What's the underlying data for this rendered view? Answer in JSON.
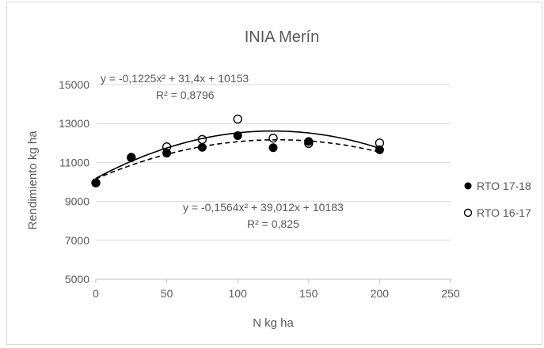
{
  "chart_data": {
    "type": "scatter",
    "title": "INIA Merín",
    "xlabel": "N kg ha",
    "ylabel": "Rendimiento kg ha",
    "xlim": [
      0,
      250
    ],
    "ylim": [
      5000,
      15000
    ],
    "x_ticks": [
      "0",
      "50",
      "100",
      "150",
      "200",
      "250"
    ],
    "y_ticks": [
      "5000",
      "7000",
      "9000",
      "11000",
      "13000",
      "15000"
    ],
    "grid": true,
    "legend_position": "right",
    "series": [
      {
        "name": "RTO 17-18",
        "marker": "filled-circle",
        "trendline": "solid",
        "color": "#000000",
        "points": [
          [
            0,
            9950
          ],
          [
            25,
            11270
          ],
          [
            50,
            11480
          ],
          [
            75,
            11780
          ],
          [
            100,
            12380
          ],
          [
            125,
            11760
          ],
          [
            150,
            12080
          ],
          [
            200,
            11650
          ]
        ],
        "equation": "y = -0,1564x² + 39,012x + 10183",
        "r2": "R² = 0,825",
        "coef": [
          -0.1564,
          39.012,
          10183
        ]
      },
      {
        "name": "RTO 16-17",
        "marker": "open-circle",
        "trendline": "dashed",
        "color": "#000000",
        "points": [
          [
            0,
            9950
          ],
          [
            25,
            11250
          ],
          [
            50,
            11800
          ],
          [
            75,
            12180
          ],
          [
            100,
            13230
          ],
          [
            125,
            12250
          ],
          [
            150,
            11980
          ],
          [
            200,
            12000
          ]
        ],
        "equation": "y = -0,1225x² + 31,4x + 10153",
        "r2": "R² = 0,8796",
        "coef": [
          -0.1225,
          31.4,
          10153
        ]
      }
    ]
  }
}
